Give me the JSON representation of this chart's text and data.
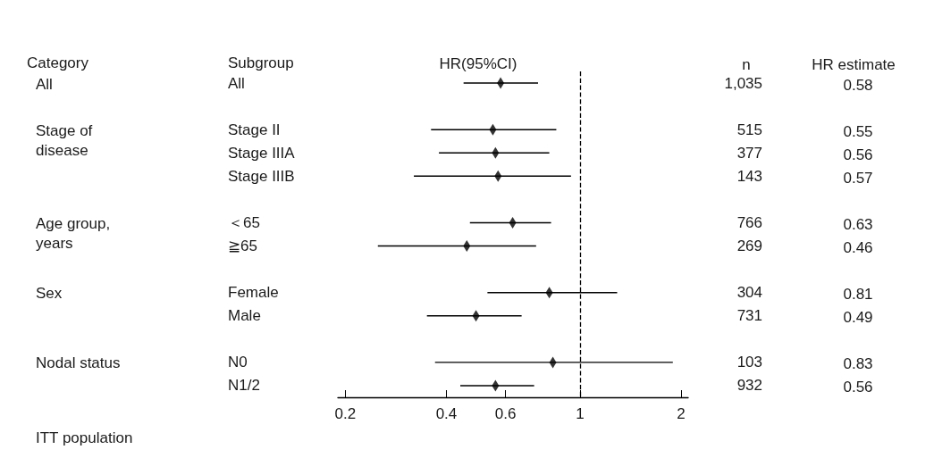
{
  "chart_data": {
    "type": "scatter",
    "orientation": "horizontal",
    "title": "HR(95%CI)",
    "ylabel": "Subgroup",
    "y2label": "n",
    "categories": [
      "All",
      null,
      "Stage II",
      "Stage IIIA",
      "Stage IIIB",
      null,
      "＜65",
      "≧65",
      null,
      "Female",
      "Male",
      null,
      "N0",
      "N1/2"
    ],
    "y2_categories": [
      "1,035",
      null,
      "515",
      "377",
      "143",
      null,
      "766",
      "269",
      null,
      "304",
      "731",
      null,
      "103",
      "932"
    ],
    "values": [
      0.58,
      null,
      0.55,
      0.56,
      0.57,
      null,
      0.63,
      0.46,
      null,
      0.81,
      0.49,
      null,
      0.83,
      0.56
    ],
    "errors": [
      [
        0.45,
        0.75
      ],
      null,
      [
        0.36,
        0.85
      ],
      [
        0.38,
        0.81
      ],
      [
        0.32,
        0.94
      ],
      null,
      [
        0.47,
        0.82
      ],
      [
        0.25,
        0.74
      ],
      null,
      [
        0.53,
        1.29
      ],
      [
        0.35,
        0.67
      ],
      null,
      [
        0.37,
        1.89
      ],
      [
        0.44,
        0.73
      ]
    ],
    "color": "#000000",
    "data_labels": true,
    "log": "x",
    "xlim": [
      0.19,
      2.1
    ],
    "xticks": [
      0.2,
      0.4,
      0.6,
      1,
      2
    ],
    "ref_lines": [
      {
        "axis": "x",
        "value": 1,
        "line_style": "dashed",
        "color": "#000000"
      }
    ],
    "grid": false,
    "marker": "diamond",
    "annotations": [
      "Category",
      "HR estimate",
      "ITT population",
      "All",
      "Stage of disease",
      "Age group, years",
      "Sex",
      "Nodal status"
    ]
  }
}
